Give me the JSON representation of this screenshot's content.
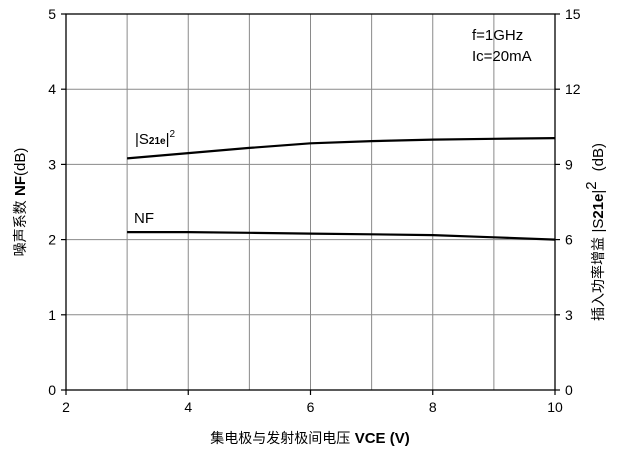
{
  "chart_data": {
    "type": "line",
    "x": [
      3,
      4,
      5,
      6,
      7,
      8,
      9,
      10
    ],
    "xlim": [
      2,
      10
    ],
    "xticks": [
      2,
      4,
      6,
      8,
      10
    ],
    "ylim_left": [
      0,
      5
    ],
    "yticks_left": [
      0,
      1,
      2,
      3,
      4,
      5
    ],
    "ylim_right": [
      0,
      15
    ],
    "yticks_right": [
      0,
      3,
      6,
      9,
      12,
      15
    ],
    "xlabel": {
      "cn": "集电极与发射极间电压 ",
      "symbol": "V",
      "sub": "CE",
      "unit": " (V)"
    },
    "ylabel_left": {
      "cn": "噪声系数 ",
      "symbol": "NF",
      "unit": "(dB)"
    },
    "ylabel_right": {
      "cn": "插入功率增益 ",
      "sym_open": "|S",
      "sub": "21e",
      "sym_close": "|",
      "sup": "2",
      "unit": "(dB)"
    },
    "grid": true,
    "series": [
      {
        "name": "NF",
        "axis": "left",
        "values": [
          2.1,
          2.1,
          2.09,
          2.08,
          2.07,
          2.06,
          2.03,
          2.0
        ],
        "label_text": "NF"
      },
      {
        "name": "|S21e|²",
        "axis": "right",
        "values": [
          9.24,
          9.45,
          9.66,
          9.84,
          9.93,
          9.99,
          10.02,
          10.05
        ],
        "label_open": "|S",
        "label_sub": "21e",
        "label_close": "|",
        "label_sup": "2"
      }
    ],
    "annotations": [
      "f=1GHz",
      "Ic=20mA"
    ]
  }
}
